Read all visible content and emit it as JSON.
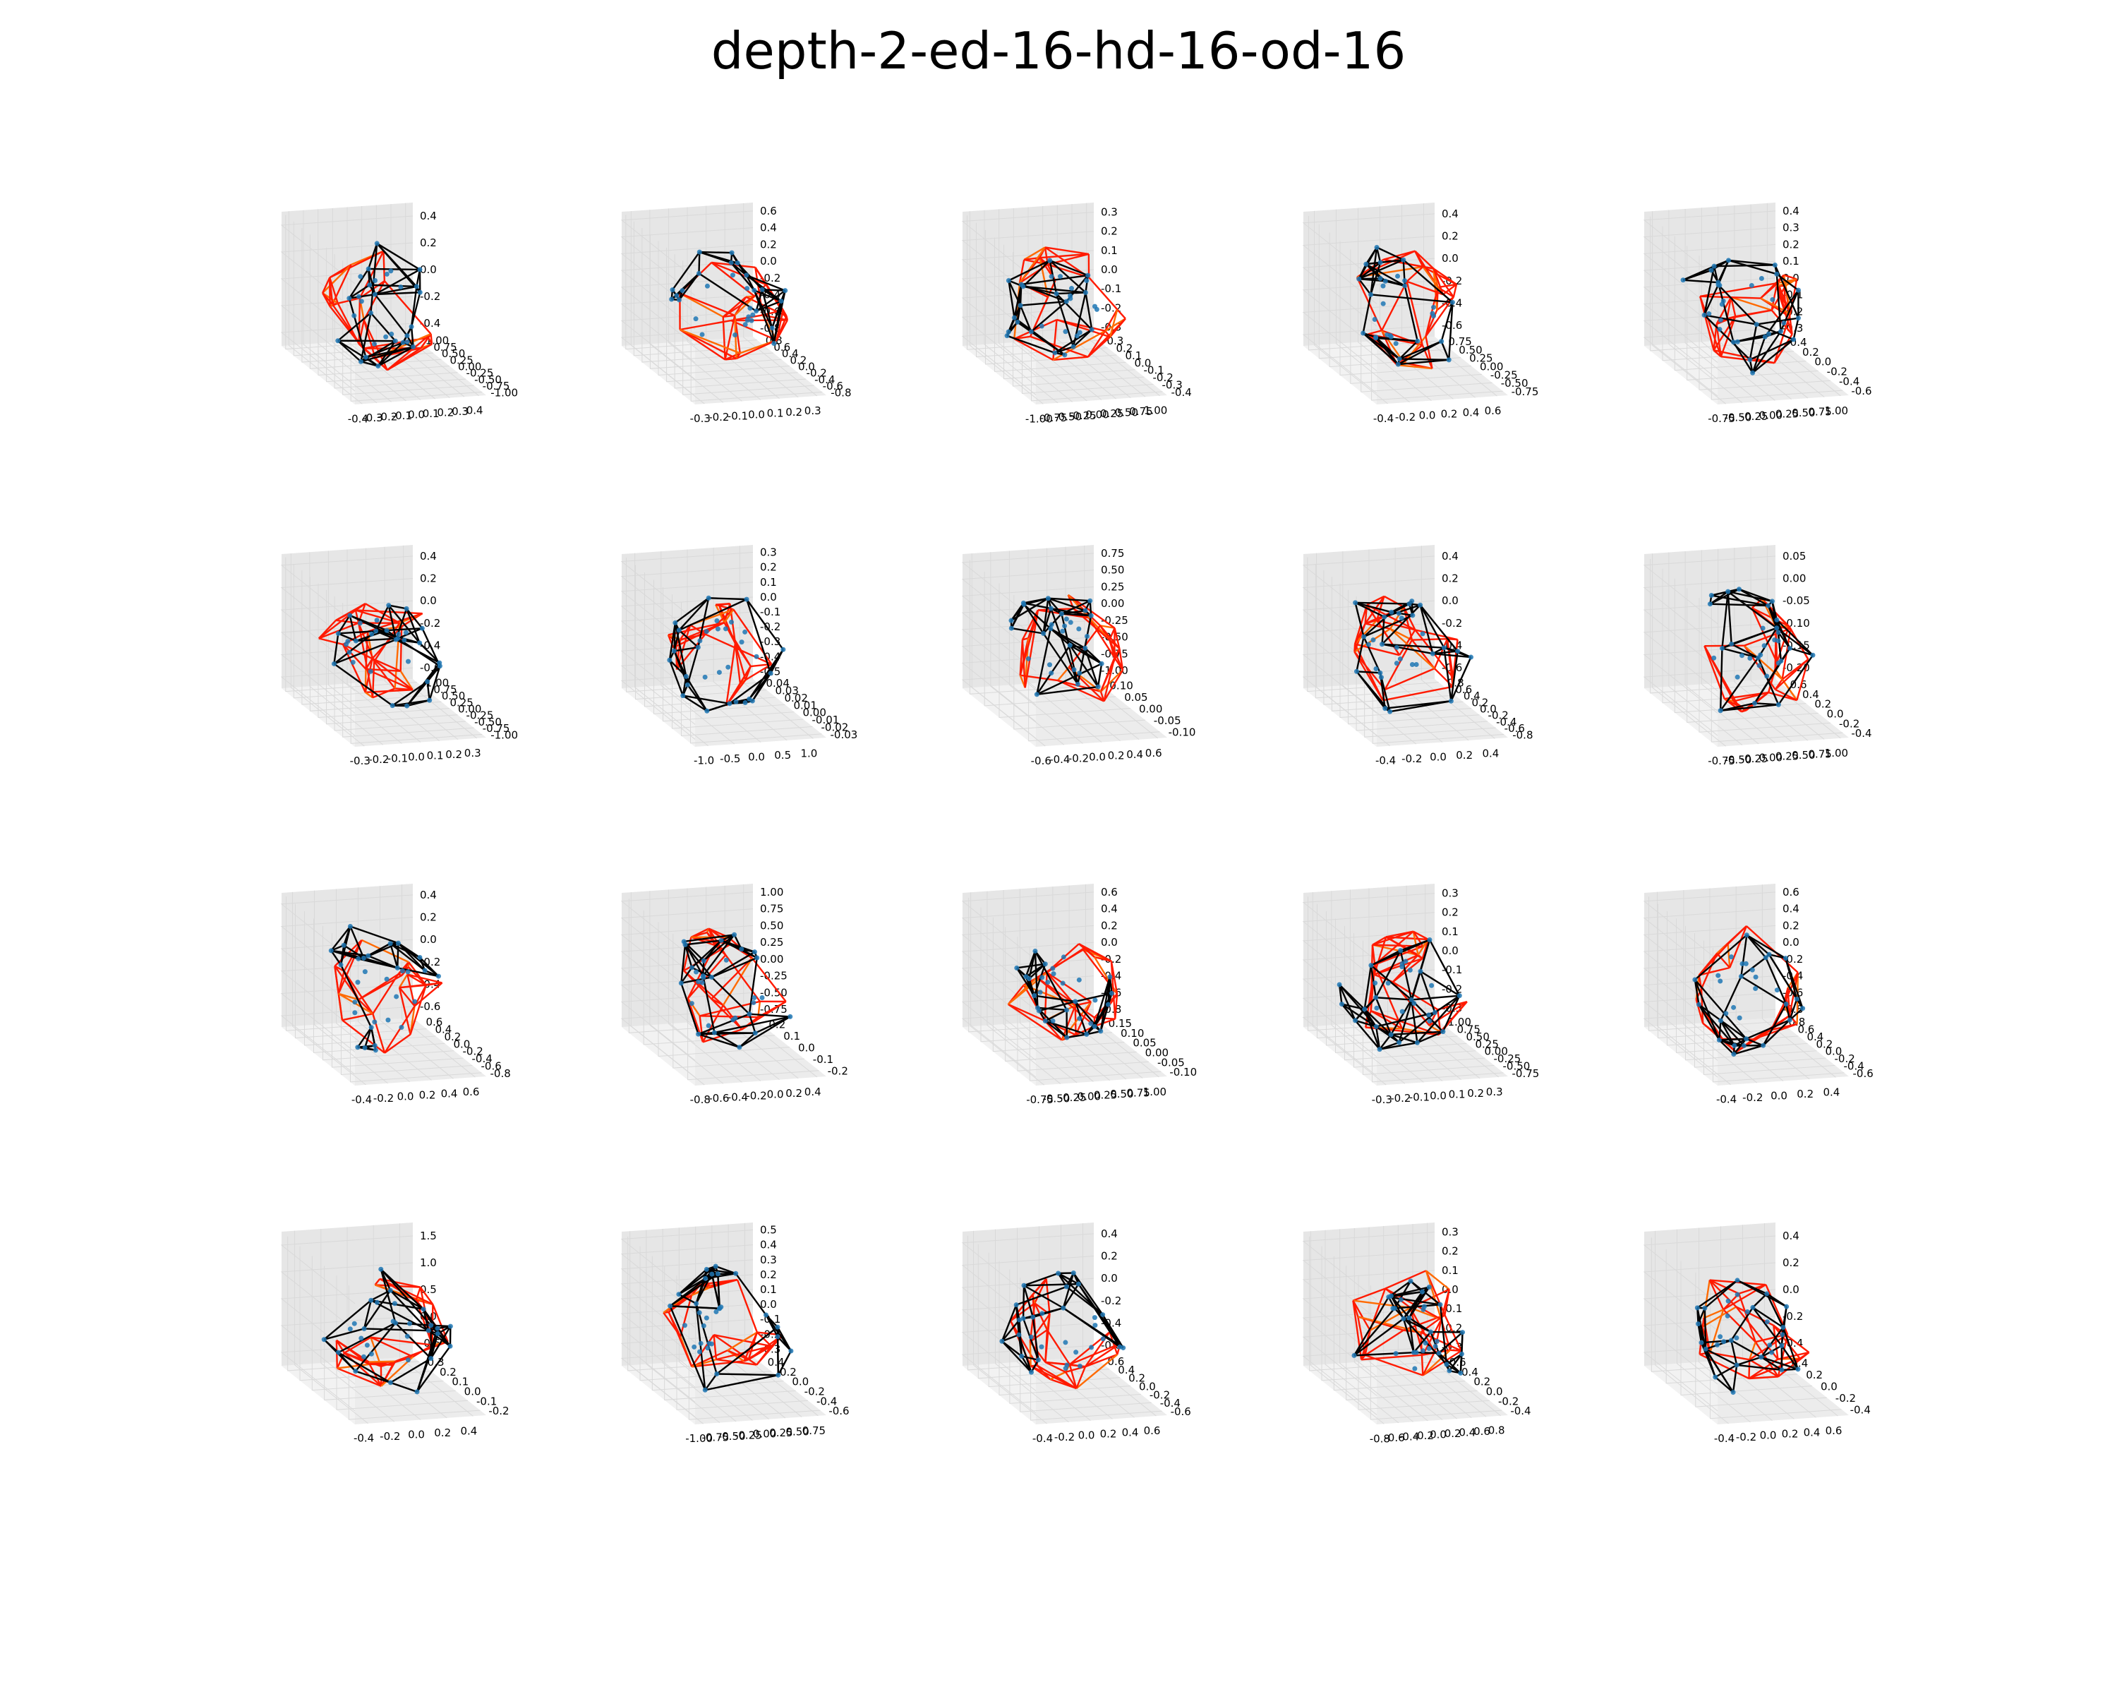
{
  "figure": {
    "title": "depth-2-ed-16-hd-16-od-16"
  },
  "colors": {
    "truth_edges": "#000000",
    "pred_edges": "#ff1a00",
    "pred_edges_alt": "#ff6a00",
    "points": "#1f77b4",
    "pane": "#f2f2f2",
    "grid": "#d9d9d9"
  },
  "chart_data": [
    {
      "type": "scatter",
      "panel": 1,
      "x_ticks": [
        "-0.4",
        "-0.3",
        "-0.2",
        "-0.1",
        "0.0",
        "0.1",
        "0.2",
        "0.3",
        "0.4"
      ],
      "y_ticks": [
        "-1.00",
        "-0.75",
        "-0.50",
        "-0.25",
        "0.00",
        "0.25",
        "0.50",
        "0.75",
        "1.00"
      ],
      "z_ticks": [
        "-0.4",
        "-0.2",
        "0.0",
        "0.2",
        "0.4"
      ]
    },
    {
      "type": "scatter",
      "panel": 2,
      "x_ticks": [
        "-0.3",
        "-0.2",
        "-0.1",
        "0.0",
        "0.1",
        "0.2",
        "0.3"
      ],
      "y_ticks": [
        "-0.8",
        "-0.6",
        "-0.4",
        "-0.2",
        "0.0",
        "0.2",
        "0.4",
        "0.6",
        "0.8"
      ],
      "z_ticks": [
        "-0.8",
        "-0.6",
        "-0.4",
        "-0.2",
        "0.0",
        "0.2",
        "0.4",
        "0.6"
      ]
    },
    {
      "type": "scatter",
      "panel": 3,
      "x_ticks": [
        "-1.00",
        "-0.75",
        "-0.50",
        "-0.25",
        "0.00",
        "0.25",
        "0.50",
        "0.75",
        "1.00"
      ],
      "y_ticks": [
        "-0.4",
        "-0.3",
        "-0.2",
        "-0.1",
        "0.0",
        "0.1",
        "0.2",
        "0.3"
      ],
      "z_ticks": [
        "-0.3",
        "-0.2",
        "-0.1",
        "0.0",
        "0.1",
        "0.2",
        "0.3"
      ]
    },
    {
      "type": "scatter",
      "panel": 4,
      "x_ticks": [
        "-0.4",
        "-0.2",
        "0.0",
        "0.2",
        "0.4",
        "0.6"
      ],
      "y_ticks": [
        "-0.75",
        "-0.50",
        "-0.25",
        "0.00",
        "0.25",
        "0.50",
        "0.75"
      ],
      "z_ticks": [
        "-0.6",
        "-0.4",
        "-0.2",
        "0.0",
        "0.2",
        "0.4"
      ]
    },
    {
      "type": "scatter",
      "panel": 5,
      "x_ticks": [
        "-0.75",
        "-0.50",
        "-0.25",
        "0.00",
        "0.25",
        "0.50",
        "0.75",
        "1.00"
      ],
      "y_ticks": [
        "-0.6",
        "-0.4",
        "-0.2",
        "0.0",
        "0.2",
        "0.4"
      ],
      "z_ticks": [
        "-0.3",
        "-0.2",
        "-0.1",
        "0.0",
        "0.1",
        "0.2",
        "0.3",
        "0.4"
      ]
    },
    {
      "type": "scatter",
      "panel": 6,
      "x_ticks": [
        "-0.3",
        "-0.2",
        "-0.1",
        "0.0",
        "0.1",
        "0.2",
        "0.3"
      ],
      "y_ticks": [
        "-1.00",
        "-0.75",
        "-0.50",
        "-0.25",
        "0.00",
        "0.25",
        "0.50",
        "0.75",
        "1.00"
      ],
      "z_ticks": [
        "-0.6",
        "-0.4",
        "-0.2",
        "0.0",
        "0.2",
        "0.4"
      ]
    },
    {
      "type": "scatter",
      "panel": 7,
      "x_ticks": [
        "-1.0",
        "-0.5",
        "0.0",
        "0.5",
        "1.0"
      ],
      "y_ticks": [
        "-0.03",
        "-0.02",
        "-0.01",
        "0.00",
        "0.01",
        "0.02",
        "0.03",
        "0.04"
      ],
      "z_ticks": [
        "-0.5",
        "-0.4",
        "-0.3",
        "-0.2",
        "-0.1",
        "0.0",
        "0.1",
        "0.2",
        "0.3"
      ]
    },
    {
      "type": "scatter",
      "panel": 8,
      "x_ticks": [
        "-0.6",
        "-0.4",
        "-0.2",
        "0.0",
        "0.2",
        "0.4",
        "0.6"
      ],
      "y_ticks": [
        "-0.10",
        "-0.05",
        "0.00",
        "0.05",
        "0.10"
      ],
      "z_ticks": [
        "-1.00",
        "-0.75",
        "-0.50",
        "-0.25",
        "0.00",
        "0.25",
        "0.50",
        "0.75"
      ]
    },
    {
      "type": "scatter",
      "panel": 9,
      "x_ticks": [
        "-0.4",
        "-0.2",
        "0.0",
        "0.2",
        "0.4"
      ],
      "y_ticks": [
        "-0.8",
        "-0.6",
        "-0.4",
        "-0.2",
        "0.0",
        "0.2",
        "0.4",
        "0.6",
        "0.8"
      ],
      "z_ticks": [
        "-0.6",
        "-0.4",
        "-0.2",
        "0.0",
        "0.2",
        "0.4"
      ]
    },
    {
      "type": "scatter",
      "panel": 10,
      "x_ticks": [
        "-0.75",
        "-0.50",
        "-0.25",
        "0.00",
        "0.25",
        "0.50",
        "0.75",
        "1.00"
      ],
      "y_ticks": [
        "-0.4",
        "-0.2",
        "0.0",
        "0.2",
        "0.4",
        "0.6"
      ],
      "z_ticks": [
        "-0.20",
        "-0.15",
        "-0.10",
        "-0.05",
        "0.00",
        "0.05"
      ]
    },
    {
      "type": "scatter",
      "panel": 11,
      "x_ticks": [
        "-0.4",
        "-0.2",
        "0.0",
        "0.2",
        "0.4",
        "0.6"
      ],
      "y_ticks": [
        "-0.8",
        "-0.6",
        "-0.4",
        "-0.2",
        "0.0",
        "0.2",
        "0.4",
        "0.6"
      ],
      "z_ticks": [
        "-0.6",
        "-0.4",
        "-0.2",
        "0.0",
        "0.2",
        "0.4"
      ]
    },
    {
      "type": "scatter",
      "panel": 12,
      "x_ticks": [
        "-0.8",
        "-0.6",
        "-0.4",
        "-0.2",
        "0.0",
        "0.2",
        "0.4"
      ],
      "y_ticks": [
        "-0.2",
        "-0.1",
        "0.0",
        "0.1",
        "0.2"
      ],
      "z_ticks": [
        "-0.75",
        "-0.50",
        "-0.25",
        "0.00",
        "0.25",
        "0.50",
        "0.75",
        "1.00"
      ]
    },
    {
      "type": "scatter",
      "panel": 13,
      "x_ticks": [
        "-0.75",
        "-0.50",
        "-0.25",
        "0.00",
        "0.25",
        "0.50",
        "0.75",
        "1.00"
      ],
      "y_ticks": [
        "-0.10",
        "-0.05",
        "0.00",
        "0.05",
        "0.10",
        "0.15"
      ],
      "z_ticks": [
        "-0.8",
        "-0.6",
        "-0.4",
        "-0.2",
        "0.0",
        "0.2",
        "0.4",
        "0.6"
      ]
    },
    {
      "type": "scatter",
      "panel": 14,
      "x_ticks": [
        "-0.3",
        "-0.2",
        "-0.1",
        "0.0",
        "0.1",
        "0.2",
        "0.3"
      ],
      "y_ticks": [
        "-0.75",
        "-0.50",
        "-0.25",
        "0.00",
        "0.25",
        "0.50",
        "0.75",
        "1.00"
      ],
      "z_ticks": [
        "-0.3",
        "-0.2",
        "-0.1",
        "0.0",
        "0.1",
        "0.2",
        "0.3"
      ]
    },
    {
      "type": "scatter",
      "panel": 15,
      "x_ticks": [
        "-0.4",
        "-0.2",
        "0.0",
        "0.2",
        "0.4"
      ],
      "y_ticks": [
        "-0.6",
        "-0.4",
        "-0.2",
        "0.0",
        "0.2",
        "0.4",
        "0.6",
        "0.8"
      ],
      "z_ticks": [
        "-0.8",
        "-0.6",
        "-0.4",
        "-0.2",
        "0.0",
        "0.2",
        "0.4",
        "0.6"
      ]
    },
    {
      "type": "scatter",
      "panel": 16,
      "x_ticks": [
        "-0.4",
        "-0.2",
        "0.0",
        "0.2",
        "0.4"
      ],
      "y_ticks": [
        "-0.2",
        "-0.1",
        "0.0",
        "0.1",
        "0.2",
        "0.3"
      ],
      "z_ticks": [
        "-0.5",
        "0.0",
        "0.5",
        "1.0",
        "1.5"
      ]
    },
    {
      "type": "scatter",
      "panel": 17,
      "x_ticks": [
        "-1.00",
        "-0.75",
        "-0.50",
        "-0.25",
        "0.00",
        "0.25",
        "0.50",
        "0.75"
      ],
      "y_ticks": [
        "-0.6",
        "-0.4",
        "-0.2",
        "0.0",
        "0.2",
        "0.4"
      ],
      "z_ticks": [
        "-0.3",
        "-0.2",
        "-0.1",
        "0.0",
        "0.1",
        "0.2",
        "0.3",
        "0.4",
        "0.5"
      ]
    },
    {
      "type": "scatter",
      "panel": 18,
      "x_ticks": [
        "-0.4",
        "-0.2",
        "0.0",
        "0.2",
        "0.4",
        "0.6"
      ],
      "y_ticks": [
        "-0.6",
        "-0.4",
        "-0.2",
        "0.0",
        "0.2",
        "0.4",
        "0.6"
      ],
      "z_ticks": [
        "-0.6",
        "-0.4",
        "-0.2",
        "0.0",
        "0.2",
        "0.4"
      ]
    },
    {
      "type": "scatter",
      "panel": 19,
      "x_ticks": [
        "-0.8",
        "-0.6",
        "-0.4",
        "-0.2",
        "0.0",
        "0.2",
        "0.4",
        "0.6",
        "0.8"
      ],
      "y_ticks": [
        "-0.4",
        "-0.2",
        "0.0",
        "0.2",
        "0.4",
        "0.6"
      ],
      "z_ticks": [
        "-0.3",
        "-0.2",
        "-0.1",
        "0.0",
        "0.1",
        "0.2",
        "0.3"
      ]
    },
    {
      "type": "scatter",
      "panel": 20,
      "x_ticks": [
        "-0.4",
        "-0.2",
        "0.0",
        "0.2",
        "0.4",
        "0.6"
      ],
      "y_ticks": [
        "-0.4",
        "-0.2",
        "0.0",
        "0.2",
        "0.4"
      ],
      "z_ticks": [
        "-0.4",
        "-0.2",
        "0.0",
        "0.2",
        "0.4"
      ]
    }
  ]
}
